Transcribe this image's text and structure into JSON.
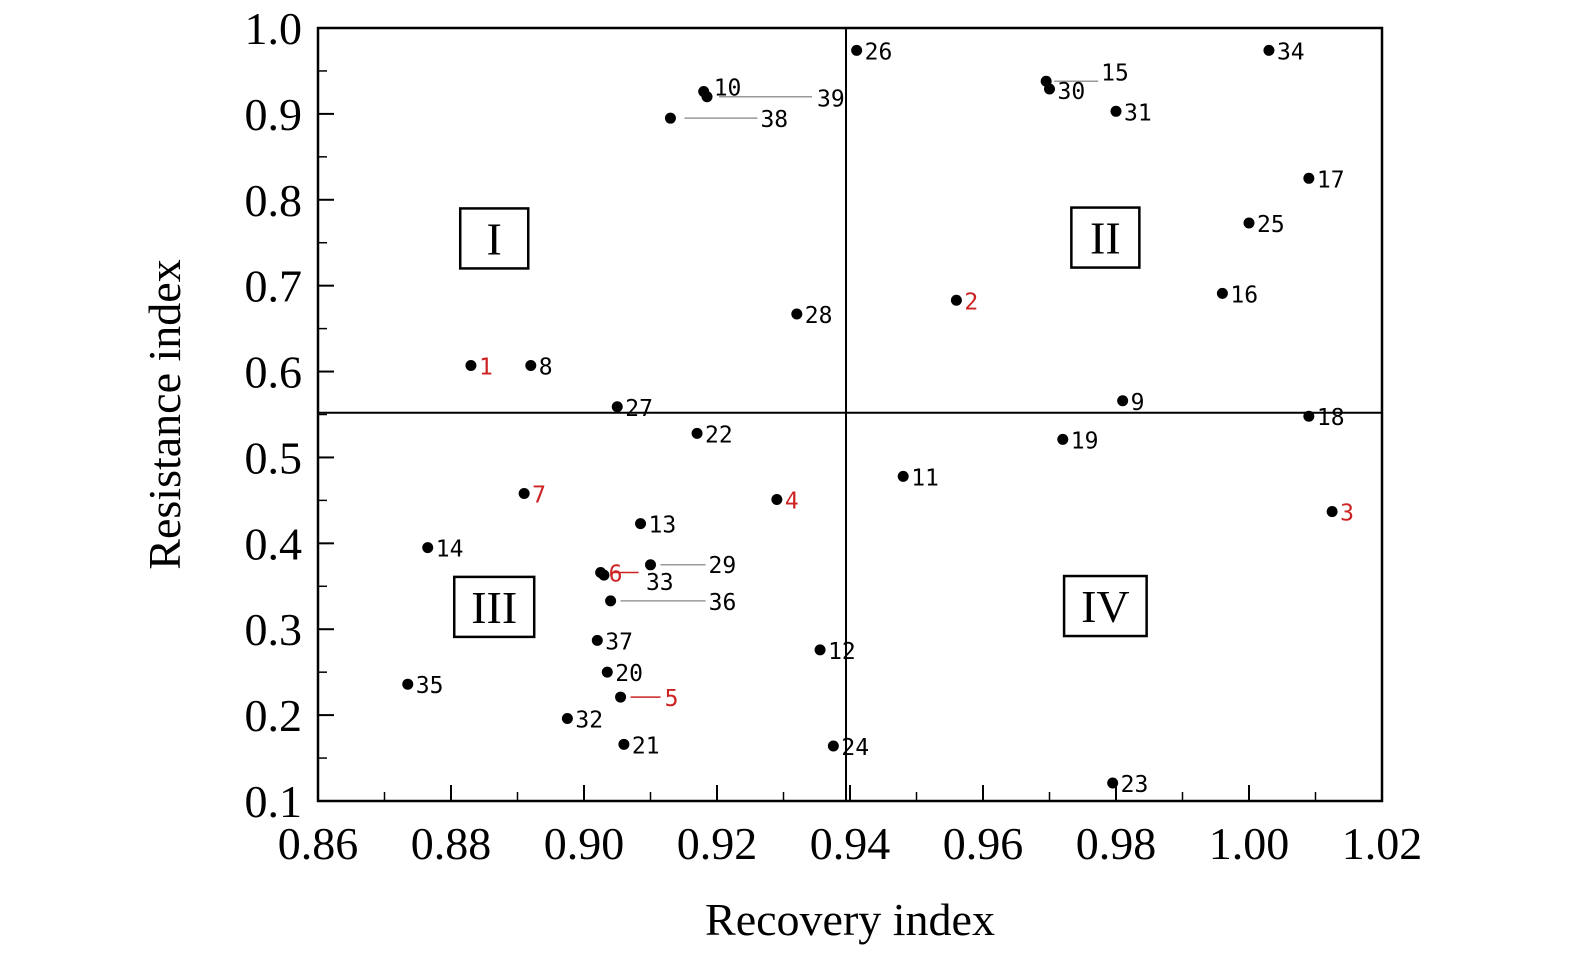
{
  "chart_data": {
    "type": "scatter",
    "xlabel": "Recovery index",
    "ylabel": "Resistance index",
    "xlim": [
      0.86,
      1.02
    ],
    "ylim": [
      0.1,
      1.0
    ],
    "x_ticks": [
      "0.86",
      "0.88",
      "0.90",
      "0.92",
      "0.94",
      "0.96",
      "0.98",
      "1.00",
      "1.02"
    ],
    "y_ticks": [
      "0.1",
      "0.2",
      "0.3",
      "0.4",
      "0.5",
      "0.6",
      "0.7",
      "0.8",
      "0.9",
      "1.0"
    ],
    "reference_lines": {
      "x": 0.9394,
      "y": 0.552
    },
    "quadrant_labels": [
      {
        "text": "I",
        "x": 0.8865,
        "y": 0.755
      },
      {
        "text": "II",
        "x": 0.9784,
        "y": 0.756
      },
      {
        "text": "III",
        "x": 0.8865,
        "y": 0.326
      },
      {
        "text": "IV",
        "x": 0.9784,
        "y": 0.327
      }
    ],
    "highlight_color": "#cc2222",
    "point_color": "#000000",
    "points": [
      {
        "label": "1",
        "x": 0.883,
        "y": 0.607,
        "highlight": true
      },
      {
        "label": "2",
        "x": 0.956,
        "y": 0.683,
        "highlight": true
      },
      {
        "label": "3",
        "x": 1.0125,
        "y": 0.437,
        "highlight": true
      },
      {
        "label": "4",
        "x": 0.929,
        "y": 0.451,
        "highlight": true
      },
      {
        "label": "5",
        "x": 0.9055,
        "y": 0.221,
        "highlight": true
      },
      {
        "label": "6",
        "x": 0.9025,
        "y": 0.366,
        "highlight": true
      },
      {
        "label": "7",
        "x": 0.891,
        "y": 0.458,
        "highlight": true
      },
      {
        "label": "8",
        "x": 0.892,
        "y": 0.607
      },
      {
        "label": "9",
        "x": 0.981,
        "y": 0.566
      },
      {
        "label": "10",
        "x": 0.918,
        "y": 0.926
      },
      {
        "label": "11",
        "x": 0.948,
        "y": 0.478
      },
      {
        "label": "12",
        "x": 0.9355,
        "y": 0.276
      },
      {
        "label": "13",
        "x": 0.9085,
        "y": 0.423
      },
      {
        "label": "14",
        "x": 0.8765,
        "y": 0.395
      },
      {
        "label": "15",
        "x": 0.9695,
        "y": 0.938
      },
      {
        "label": "16",
        "x": 0.996,
        "y": 0.691
      },
      {
        "label": "17",
        "x": 1.009,
        "y": 0.825
      },
      {
        "label": "18",
        "x": 1.009,
        "y": 0.548
      },
      {
        "label": "19",
        "x": 0.972,
        "y": 0.521
      },
      {
        "label": "20",
        "x": 0.9035,
        "y": 0.25
      },
      {
        "label": "21",
        "x": 0.906,
        "y": 0.166
      },
      {
        "label": "22",
        "x": 0.917,
        "y": 0.528
      },
      {
        "label": "23",
        "x": 0.9795,
        "y": 0.121
      },
      {
        "label": "24",
        "x": 0.9375,
        "y": 0.164
      },
      {
        "label": "25",
        "x": 1.0,
        "y": 0.773
      },
      {
        "label": "26",
        "x": 0.941,
        "y": 0.974
      },
      {
        "label": "27",
        "x": 0.905,
        "y": 0.559
      },
      {
        "label": "28",
        "x": 0.932,
        "y": 0.667
      },
      {
        "label": "29",
        "x": 0.91,
        "y": 0.375
      },
      {
        "label": "30",
        "x": 0.97,
        "y": 0.929
      },
      {
        "label": "31",
        "x": 0.98,
        "y": 0.903
      },
      {
        "label": "32",
        "x": 0.8975,
        "y": 0.196
      },
      {
        "label": "33",
        "x": 0.903,
        "y": 0.363
      },
      {
        "label": "34",
        "x": 1.003,
        "y": 0.974
      },
      {
        "label": "35",
        "x": 0.8735,
        "y": 0.236
      },
      {
        "label": "36",
        "x": 0.904,
        "y": 0.333
      },
      {
        "label": "37",
        "x": 0.902,
        "y": 0.287
      },
      {
        "label": "38",
        "x": 0.913,
        "y": 0.895
      },
      {
        "label": "39",
        "x": 0.9185,
        "y": 0.92
      }
    ]
  }
}
